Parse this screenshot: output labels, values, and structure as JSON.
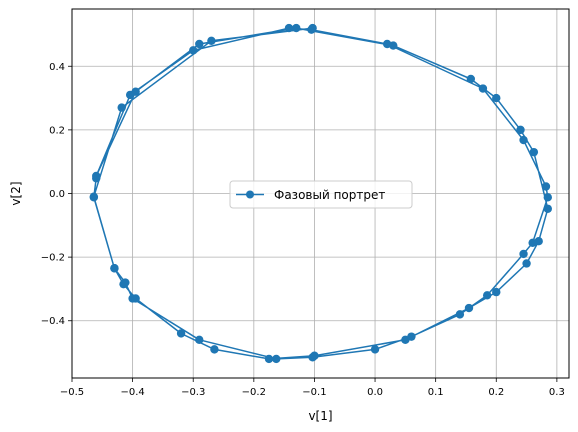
{
  "chart_data": {
    "type": "line",
    "title": "",
    "xlabel": "v[1]",
    "ylabel": "v[2]",
    "xlim": [
      -0.5,
      0.32
    ],
    "ylim": [
      -0.58,
      0.58
    ],
    "xticks": [
      -0.5,
      -0.4,
      -0.3,
      -0.2,
      -0.1,
      0.0,
      0.1,
      0.2,
      0.3
    ],
    "xtick_labels": [
      "−0.5",
      "−0.4",
      "−0.3",
      "−0.2",
      "−0.1",
      "0.0",
      "0.1",
      "0.2",
      "0.3"
    ],
    "yticks": [
      -0.4,
      -0.2,
      0.0,
      0.2,
      0.4
    ],
    "ytick_labels": [
      "−0.4",
      "−0.2",
      "0.0",
      "0.2",
      "0.4"
    ],
    "grid": true,
    "legend_position": "center",
    "series": [
      {
        "name": "Фазовый портрет",
        "color": "#1f77b4",
        "marker": "circle",
        "x": [
          -0.46,
          -0.464,
          -0.43,
          -0.415,
          -0.395,
          -0.32,
          -0.265,
          -0.175,
          -0.1,
          0.05,
          0.155,
          0.2,
          0.25,
          0.27,
          0.285,
          0.262,
          0.24,
          0.2,
          0.158,
          0.03,
          -0.13,
          -0.29,
          -0.395,
          -0.46,
          -0.404,
          -0.3,
          -0.142,
          -0.105,
          0.02,
          0.178,
          0.245,
          0.282,
          0.285,
          0.26,
          0.245,
          0.185,
          0.14,
          0.06,
          0.0,
          -0.103,
          -0.163,
          -0.29,
          -0.4,
          -0.412,
          -0.43,
          -0.464,
          -0.418,
          -0.27,
          -0.103
        ],
        "y": [
          0.048,
          -0.012,
          -0.235,
          -0.285,
          -0.33,
          -0.44,
          -0.49,
          -0.52,
          -0.51,
          -0.46,
          -0.36,
          -0.31,
          -0.22,
          -0.15,
          -0.048,
          0.13,
          0.2,
          0.3,
          0.36,
          0.465,
          0.52,
          0.47,
          0.32,
          0.055,
          0.31,
          0.45,
          0.52,
          0.515,
          0.47,
          0.33,
          0.168,
          0.022,
          -0.012,
          -0.155,
          -0.19,
          -0.32,
          -0.38,
          -0.45,
          -0.49,
          -0.515,
          -0.52,
          -0.46,
          -0.33,
          -0.28,
          -0.235,
          -0.01,
          0.27,
          0.48,
          0.52
        ]
      }
    ]
  }
}
